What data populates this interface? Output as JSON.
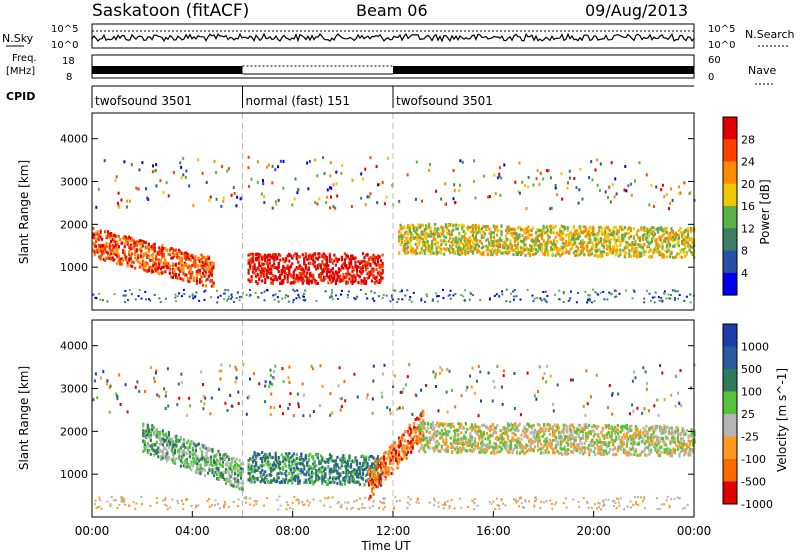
{
  "header": {
    "station": "Saskatoon (fitACF)",
    "beam": "Beam 06",
    "date": "09/Aug/2013"
  },
  "status_panels": {
    "nsky_label": "N.Sky",
    "nsky_ticks": [
      "10^5",
      "10^0"
    ],
    "nsearch_label": "N.Search",
    "nsearch_ticks": [
      "10^5",
      "10^0"
    ],
    "freq_label_1": "Freq.",
    "freq_label_2": "[MHz]",
    "freq_ticks": [
      "18",
      "8"
    ],
    "nave_label": "Nave",
    "nave_ticks": [
      "60",
      "0"
    ],
    "cpid_label": "CPID",
    "cpid_segments": [
      {
        "label": "twofsound 3501",
        "start_h": 0,
        "end_h": 6
      },
      {
        "label": "normal (fast) 151",
        "start_h": 6,
        "end_h": 12
      },
      {
        "label": "twofsound 3501",
        "start_h": 12,
        "end_h": 24
      }
    ]
  },
  "chart_data": [
    {
      "type": "heatmap",
      "name": "power",
      "ylabel": "Slant Range [km]",
      "ylim": [
        0,
        4600
      ],
      "yticks": [
        "4000",
        "3000",
        "2000",
        "1000"
      ],
      "colorbar_label": "Power [dB]",
      "colorbar_ticks": [
        "28",
        "24",
        "20",
        "16",
        "12",
        "8",
        "4"
      ],
      "colors": [
        "#0000ee",
        "#2a4fa8",
        "#3c7d64",
        "#5ab04a",
        "#f0c800",
        "#ff8c00",
        "#ff4000",
        "#e00000"
      ],
      "echo_bands": [
        {
          "start_h": 0,
          "end_h": 4.8,
          "range_from": 1600,
          "range_to": 900,
          "level": 6
        },
        {
          "start_h": 6.2,
          "end_h": 11.6,
          "range_from": 1000,
          "range_to": 1000,
          "level": 7
        },
        {
          "start_h": 12.2,
          "end_h": 24,
          "range_from": 1700,
          "range_to": 1600,
          "level": 4
        }
      ]
    },
    {
      "type": "heatmap",
      "name": "velocity",
      "ylabel": "Slant Range [km]",
      "ylim": [
        0,
        4600
      ],
      "yticks": [
        "4000",
        "3000",
        "2000",
        "1000"
      ],
      "colorbar_label": "Velocity [m s^-1]",
      "colorbar_ticks": [
        "1000",
        "500",
        "100",
        "25",
        "-25",
        "-100",
        "-500",
        "-1000"
      ],
      "colors": [
        "#1e3caa",
        "#2a5aa0",
        "#2f7a5a",
        "#56c43a",
        "#b4b4b4",
        "#ff9a1e",
        "#ff6a00",
        "#e00000"
      ],
      "echo_bands": [
        {
          "start_h": 2,
          "end_h": 6,
          "range_from": 1900,
          "range_to": 1000,
          "level": 3
        },
        {
          "start_h": 6.2,
          "end_h": 11.5,
          "range_from": 1200,
          "range_to": 1100,
          "level": 2
        },
        {
          "start_h": 11,
          "end_h": 13.2,
          "range_from": 800,
          "range_to": 2200,
          "level": 6
        },
        {
          "start_h": 13,
          "end_h": 24,
          "range_from": 1900,
          "range_to": 1800,
          "level": 4
        }
      ]
    }
  ],
  "xaxis": {
    "label": "Time UT",
    "ticks": [
      "00:00",
      "04:00",
      "08:00",
      "12:00",
      "16:00",
      "20:00",
      "00:00"
    ],
    "range_h": [
      0,
      24
    ]
  }
}
